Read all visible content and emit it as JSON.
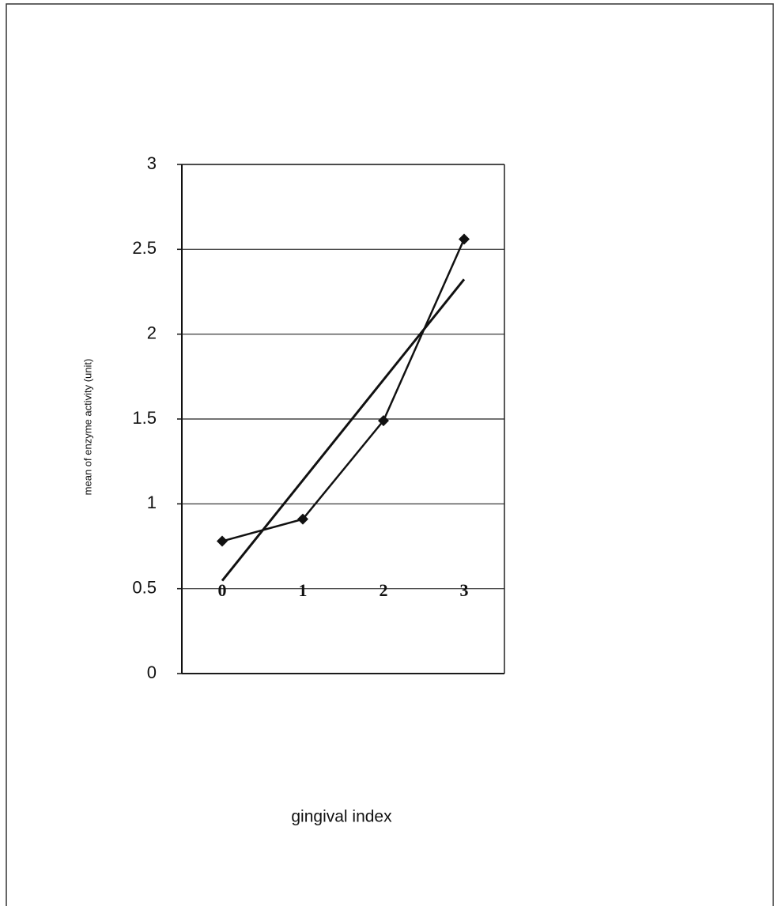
{
  "chart_data": {
    "type": "line",
    "categories": [
      "0",
      "1",
      "2",
      "3"
    ],
    "series": [
      {
        "color": "#111111",
        "values": [
          0.78,
          0.91,
          1.49,
          2.56
        ]
      }
    ],
    "trendline": {
      "color": "#111111",
      "values": [
        0.547,
        2.323
      ]
    },
    "ylim": [
      0,
      3
    ],
    "yticks": [
      0,
      0.5,
      1,
      1.5,
      2,
      2.5,
      3
    ],
    "grid": true,
    "ylabel": "mean of enzyme activity (unit)",
    "xlabel": "gingival index"
  }
}
